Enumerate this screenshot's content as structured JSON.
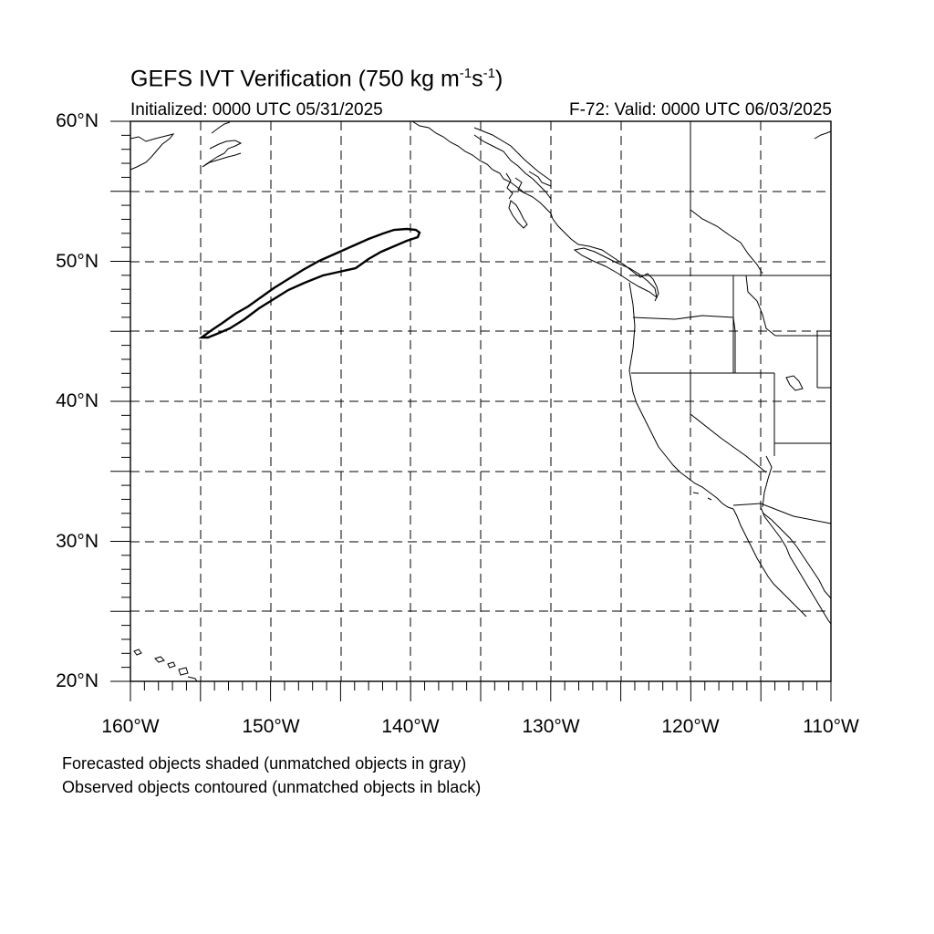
{
  "title": {
    "prefix": "GEFS IVT Verification (750 kg m",
    "exp1": "-1",
    "mid": "s",
    "exp2": "-1",
    "suffix": ")"
  },
  "init_text": "Initialized: 0000 UTC 05/31/2025",
  "valid_text": "F-72: Valid: 0000 UTC 06/03/2025",
  "notes": [
    "Forecasted objects shaded (unmatched objects in gray)",
    "Observed objects contoured (unmatched objects in black)"
  ],
  "y_ticks": [
    "60°N",
    "50°N",
    "40°N",
    "30°N",
    "20°N"
  ],
  "x_ticks": [
    "160°W",
    "150°W",
    "140°W",
    "130°W",
    "120°W",
    "110°W"
  ],
  "colors": {
    "contour": "#000000",
    "grid": "#000000",
    "background": "#ffffff"
  }
}
